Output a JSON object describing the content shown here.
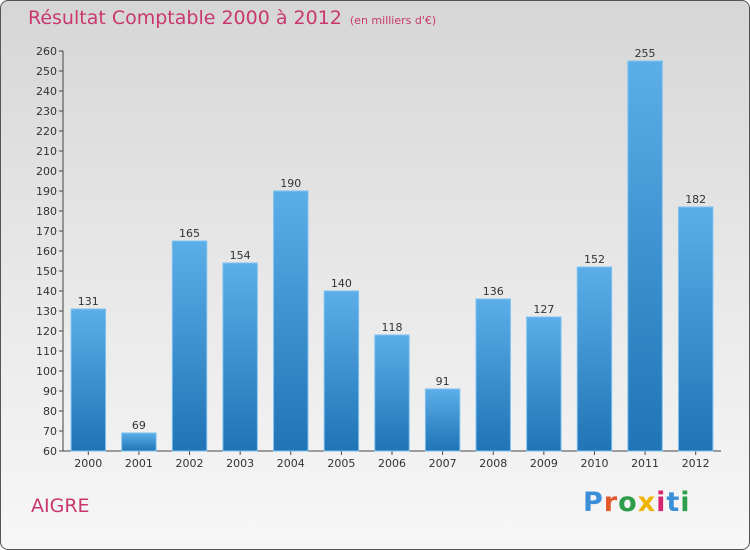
{
  "chart_data": {
    "type": "bar",
    "title": "Résultat Comptable 2000 à 2012",
    "subtitle": "(en milliers d'€)",
    "categories": [
      "2000",
      "2001",
      "2002",
      "2003",
      "2004",
      "2005",
      "2006",
      "2007",
      "2008",
      "2009",
      "2010",
      "2011",
      "2012"
    ],
    "values": [
      131,
      69,
      165,
      154,
      190,
      140,
      118,
      91,
      136,
      127,
      152,
      255,
      182
    ],
    "ylim": [
      60,
      260
    ],
    "ytick_step": 10,
    "xlabel": "",
    "ylabel": "",
    "grid": false,
    "colors": {
      "bar_light": "#5baee8",
      "bar_dark": "#2174b5",
      "title": "#c8386e"
    }
  },
  "commune": "AIGRE",
  "logo": {
    "text": "Proxiti",
    "letter_colors": [
      "#3a8fd8",
      "#e05a2b",
      "#2e9e4a",
      "#f0b400",
      "#d8266e",
      "#3a8fd8",
      "#2e9e4a"
    ]
  }
}
